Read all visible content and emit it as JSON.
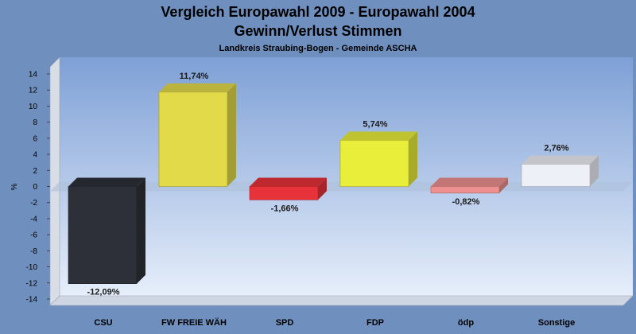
{
  "chart_data": {
    "type": "bar",
    "title": "Vergleich Europawahl 2009 - Europawahl 2004",
    "subtitle": "Gewinn/Verlust Stimmen",
    "caption": "Landkreis Straubing-Bogen - Gemeinde ASCHA",
    "ylabel": "%",
    "xlabel": "",
    "ylim": [
      -14,
      14
    ],
    "yticks": [
      14,
      12,
      10,
      8,
      6,
      4,
      2,
      0,
      -2,
      -4,
      -6,
      -8,
      -10,
      -12,
      -14
    ],
    "grid": false,
    "categories": [
      "CSU",
      "FW FREIE WÄH",
      "SPD",
      "FDP",
      "ödp",
      "Sonstige"
    ],
    "values": [
      -12.09,
      11.74,
      -1.66,
      5.74,
      -0.82,
      2.76
    ],
    "value_labels": [
      "-12,09%",
      "11,74%",
      "-1,66%",
      "5,74%",
      "-0,82%",
      "2,76%"
    ],
    "colors": [
      "#2d3038",
      "#e3da4a",
      "#e8323a",
      "#e9ee3a",
      "#ee9090",
      "#eef0f8"
    ]
  }
}
